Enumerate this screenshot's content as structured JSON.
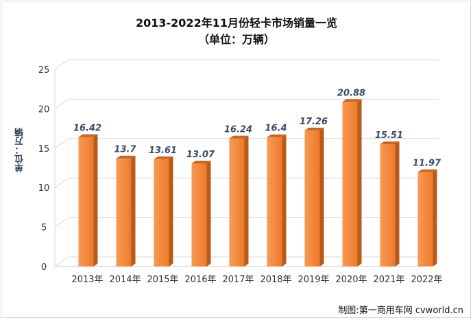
{
  "chart_data": {
    "type": "bar",
    "title": "2013-2022年11月份轻卡市场销量一览",
    "subtitle": "（单位：万辆）",
    "ylabel": "单位：万辆",
    "xlabel": "",
    "categories": [
      "2013年",
      "2014年",
      "2015年",
      "2016年",
      "2017年",
      "2018年",
      "2019年",
      "2020年",
      "2021年",
      "2022年"
    ],
    "values": [
      16.42,
      13.7,
      13.61,
      13.07,
      16.24,
      16.4,
      17.26,
      20.88,
      15.51,
      11.97
    ],
    "data_labels": [
      "16.42",
      "13.7",
      "13.61",
      "13.07",
      "16.24",
      "16.4",
      "17.26",
      "20.88",
      "15.51",
      "11.97"
    ],
    "ylim": [
      0,
      25
    ],
    "yticks": [
      0,
      5,
      10,
      15,
      20,
      25
    ],
    "grid": true,
    "legend": "none",
    "colors": {
      "bar_front_top": "#f79a56",
      "bar_front_bottom": "#ee7a2a",
      "bar_side": "#b85b1a",
      "bar_top": "#c8672a",
      "grid": "#d9d9d9",
      "label": "#3b4a66"
    }
  },
  "credit": "制图:第一商用车网 cvworld.cn"
}
